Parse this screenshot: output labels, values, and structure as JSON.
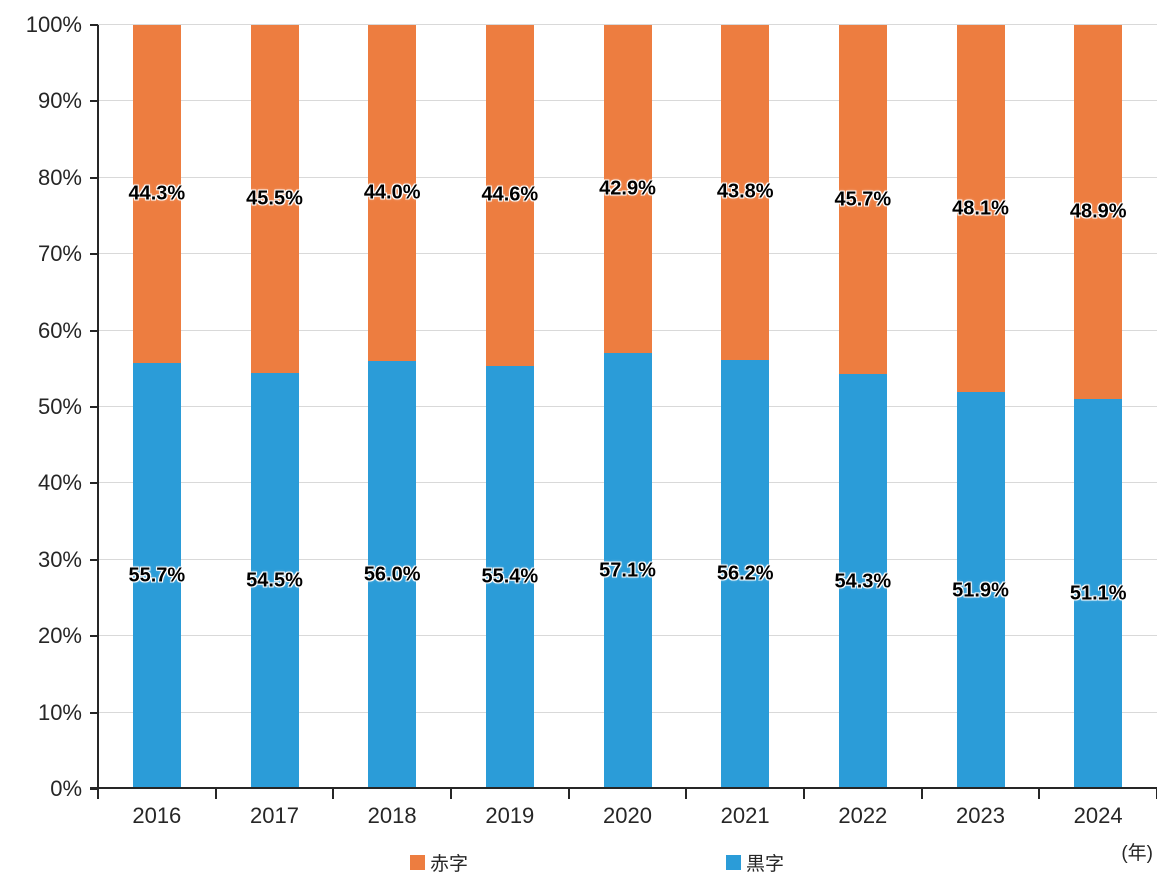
{
  "chart_data": {
    "type": "bar",
    "stacked": true,
    "unit": "percent",
    "title": "",
    "categories": [
      "2016",
      "2017",
      "2018",
      "2019",
      "2020",
      "2021",
      "2022",
      "2023",
      "2024"
    ],
    "series": [
      {
        "id": "surplus",
        "name": "黒字",
        "color": "#2B9CD8",
        "values": [
          55.7,
          54.5,
          56.0,
          55.4,
          57.1,
          56.2,
          54.3,
          51.9,
          51.1
        ]
      },
      {
        "id": "deficit",
        "name": "赤字",
        "color": "#ED7D40",
        "values": [
          44.3,
          45.5,
          44.0,
          44.6,
          42.9,
          43.8,
          45.7,
          48.1,
          48.9
        ]
      }
    ],
    "ylim": [
      0,
      100
    ],
    "y_ticks": [
      {
        "label": "0%",
        "value": 0
      },
      {
        "label": "10%",
        "value": 10
      },
      {
        "label": "20%",
        "value": 20
      },
      {
        "label": "30%",
        "value": 30
      },
      {
        "label": "40%",
        "value": 40
      },
      {
        "label": "50%",
        "value": 50
      },
      {
        "label": "60%",
        "value": 60
      },
      {
        "label": "70%",
        "value": 70
      },
      {
        "label": "80%",
        "value": 80
      },
      {
        "label": "90%",
        "value": 90
      },
      {
        "label": "100%",
        "value": 100
      }
    ],
    "xlabel": "(年)",
    "ylabel": "",
    "grid": true,
    "data_labels": true,
    "data_label_format": "0.0%",
    "legend_position": "bottom"
  },
  "legend": {
    "items": [
      {
        "id": "deficit",
        "label": "赤字",
        "color": "#ED7D40"
      },
      {
        "id": "surplus",
        "label": "黒字",
        "color": "#2B9CD8"
      }
    ]
  },
  "colors": {
    "background": "#FFFFFF",
    "gridline": "#D9D9D9",
    "axis": "#262626",
    "tick_label": "#262626",
    "data_label": "#000000"
  }
}
